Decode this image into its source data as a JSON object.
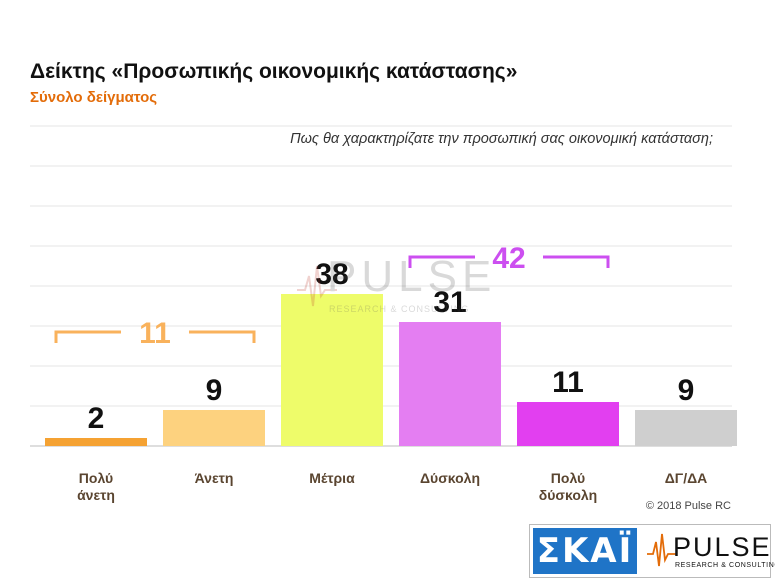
{
  "header": {
    "title": "Δείκτης «Προσωπικής οικονομικής κατάστασης»",
    "subtitle": "Σύνολο δείγματος",
    "question": "Πως θα χαρακτηρίζατε την προσωπική σας οικονομική κατάσταση;"
  },
  "chart_data": {
    "type": "bar",
    "categories": [
      "Πολύ\nάνετη",
      "Άνετη",
      "Μέτρια",
      "Δύσκολη",
      "Πολύ\nδύσκολη",
      "ΔΓ/ΔΑ"
    ],
    "values": [
      2,
      9,
      38,
      31,
      11,
      9
    ],
    "colors": [
      "#f5a233",
      "#fdd27f",
      "#eefc6a",
      "#e47ef2",
      "#e23ff0",
      "#cfcfcf"
    ],
    "ylim": [
      0,
      80
    ],
    "grid": true,
    "brackets": [
      {
        "value": 11,
        "from": 0,
        "to": 1,
        "color": "#f9b25c"
      },
      {
        "value": 42,
        "from": 3,
        "to": 4,
        "color": "#cc4ff0"
      }
    ]
  },
  "footer": {
    "copyright": "© 2018 Pulse RC",
    "logo_skai": "ΣΚΑΪ",
    "logo_pulse": "PULSE",
    "logo_pulse_sub": "RESEARCH & CONSULTING"
  }
}
